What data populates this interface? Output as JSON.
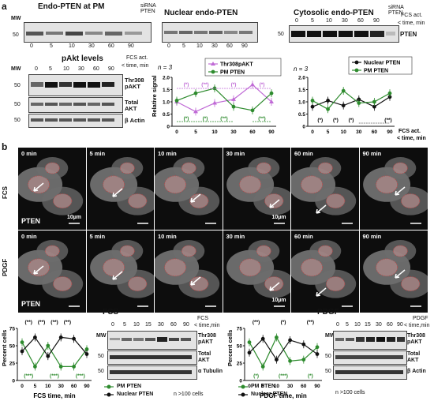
{
  "figure": {
    "panel_a": "a",
    "panel_b": "b",
    "mw": "MW",
    "kda_50": "50"
  },
  "blots_top": {
    "endo_pm_title": "Endo-PTEN at PM",
    "nuclear_title": "Nuclear endo-PTEN",
    "cytosolic_title": "Cytosolic endo-PTEN",
    "sirna": "siRNA PTEN",
    "timepoints": [
      "0",
      "5",
      "10",
      "30",
      "60",
      "90"
    ],
    "fcs_act": "FCS act.",
    "time_min": "< time, min",
    "pten": "PTEN"
  },
  "pakt_block": {
    "title": "pAkt levels",
    "fcs_act": "FCS act.",
    "time_min": "< time, min",
    "timepoints": [
      "0",
      "5",
      "10",
      "30",
      "60",
      "90"
    ],
    "row_labels": [
      "Thr308 pAKT",
      "Total AKT",
      "β Actin"
    ]
  },
  "colors": {
    "pm_pten": "#2e8b2e",
    "thr308": "#c06bd6",
    "nuclear": "#111111",
    "sig": "#2e8b2e"
  },
  "charts": {
    "chart1": {
      "n_label": "n = 3",
      "legend": [
        "Thr308pAKT",
        "PM PTEN"
      ],
      "ylabel": "Relative signal",
      "yticks": [
        "2.0",
        "1.5",
        "1.0",
        "0.5",
        "0"
      ],
      "xticks": [
        "0",
        "5",
        "10",
        "30",
        "60",
        "90"
      ],
      "sig_top": [
        "(*)",
        "(**)",
        "(*)",
        "(*)"
      ],
      "sig_bottom": [
        "(*)",
        "(*)",
        "(**)",
        "(**)"
      ]
    },
    "chart2": {
      "n_label": "n = 3",
      "legend": [
        "Nuclear PTEN",
        "PM PTEN"
      ],
      "yticks": [
        "2.0",
        "1.5",
        "1.0",
        "0.5",
        "0"
      ],
      "xticks": [
        "0",
        "5",
        "10",
        "30",
        "60",
        "90"
      ],
      "sig_bottom": [
        "(*)",
        "(*)",
        "(*)"
      ],
      "sig_right": "(**)",
      "xlabel1": "FCS act.",
      "xlabel2": "< time, min"
    },
    "chart3": {
      "title": "FCS",
      "ylabel": "Percent cells",
      "yticks": [
        "75",
        "50",
        "25",
        "0"
      ],
      "xticks": [
        "0",
        "5",
        "10",
        "30",
        "60",
        "90"
      ],
      "xlabel": "FCS time, min",
      "sig_top": [
        "(**)",
        "(**)",
        "(**)",
        "(**)"
      ],
      "sig_bottom": [
        "(***)",
        "(***)",
        "(***)"
      ]
    },
    "chart4": {
      "title": "PDGF",
      "ylabel": "Percent cells",
      "yticks": [
        "75",
        "50",
        "25",
        "0"
      ],
      "xticks": [
        "0",
        "5",
        "10",
        "30",
        "60",
        "90"
      ],
      "xlabel": "PDGF time, min",
      "sig_top": [
        "(**)",
        "(*)",
        "(**)"
      ],
      "sig_bottom": [
        "(*)",
        "(***)",
        "(*)"
      ]
    }
  },
  "chart_data": [
    {
      "type": "line",
      "categories": [
        "0",
        "5",
        "10",
        "30",
        "60",
        "90"
      ],
      "ylim": [
        0,
        2.0
      ],
      "ylabel": "Relative signal",
      "series": [
        {
          "name": "Thr308pAKT",
          "values": [
            1.0,
            0.6,
            0.95,
            1.1,
            1.7,
            1.0
          ]
        },
        {
          "name": "PM PTEN",
          "values": [
            1.05,
            1.35,
            1.55,
            0.8,
            0.65,
            1.35
          ]
        }
      ]
    },
    {
      "type": "line",
      "categories": [
        "0",
        "5",
        "10",
        "30",
        "60",
        "90"
      ],
      "ylim": [
        0,
        2.0
      ],
      "series": [
        {
          "name": "Nuclear PTEN",
          "values": [
            0.8,
            1.05,
            0.85,
            1.1,
            0.8,
            1.2
          ]
        },
        {
          "name": "PM PTEN",
          "values": [
            1.05,
            0.7,
            1.45,
            0.95,
            1.0,
            1.35
          ]
        }
      ]
    },
    {
      "type": "line",
      "title": "FCS",
      "categories": [
        "0",
        "5",
        "10",
        "30",
        "60",
        "90"
      ],
      "ylim": [
        0,
        75
      ],
      "xlabel": "FCS time, min",
      "ylabel": "Percent cells",
      "series": [
        {
          "name": "PM PTEN",
          "values": [
            55,
            20,
            50,
            20,
            20,
            45
          ]
        },
        {
          "name": "Nuclear PTEN",
          "values": [
            42,
            62,
            35,
            62,
            60,
            38
          ]
        }
      ]
    },
    {
      "type": "line",
      "title": "PDGF",
      "categories": [
        "0",
        "5",
        "10",
        "30",
        "60",
        "90"
      ],
      "ylim": [
        0,
        75
      ],
      "xlabel": "PDGF time, min",
      "ylabel": "Percent cells",
      "series": [
        {
          "name": "PM PTEN",
          "values": [
            55,
            20,
            62,
            28,
            30,
            48
          ]
        },
        {
          "name": "Nuclear PTEN",
          "values": [
            40,
            60,
            30,
            58,
            52,
            38
          ]
        }
      ]
    }
  ],
  "micro": {
    "row_fcs_label": "FCS",
    "row_pdgf_label": "PDGF",
    "fcs_times": [
      "0 min",
      "5 min",
      "10 min",
      "30 min",
      "60 min",
      "90 min"
    ],
    "pdgf_times": [
      "0 min",
      "5 min",
      "10 min",
      "30 min",
      "60 min",
      "90 min"
    ],
    "pten_label": "PTEN",
    "scale": "10µm"
  },
  "bottom_blots": {
    "fcs_times": [
      "0",
      "5",
      "10",
      "15",
      "30",
      "60",
      "90"
    ],
    "fcs_rows": [
      "Thr308 pAKT",
      "Total AKT",
      "α Tubulin"
    ],
    "fcs_header": "FCS",
    "pdgf_times": [
      "0",
      "5",
      "10",
      "15",
      "30",
      "60",
      "90"
    ],
    "pdgf_rows": [
      "Thr308 pAKT",
      "Total AKT",
      "β Actin"
    ],
    "pdgf_header": "PDGF",
    "time_min": "< time,min",
    "legend_pm": "PM PTEN",
    "legend_nuc": "Nuclear PTEN",
    "cells_note": "n >100 cells"
  }
}
